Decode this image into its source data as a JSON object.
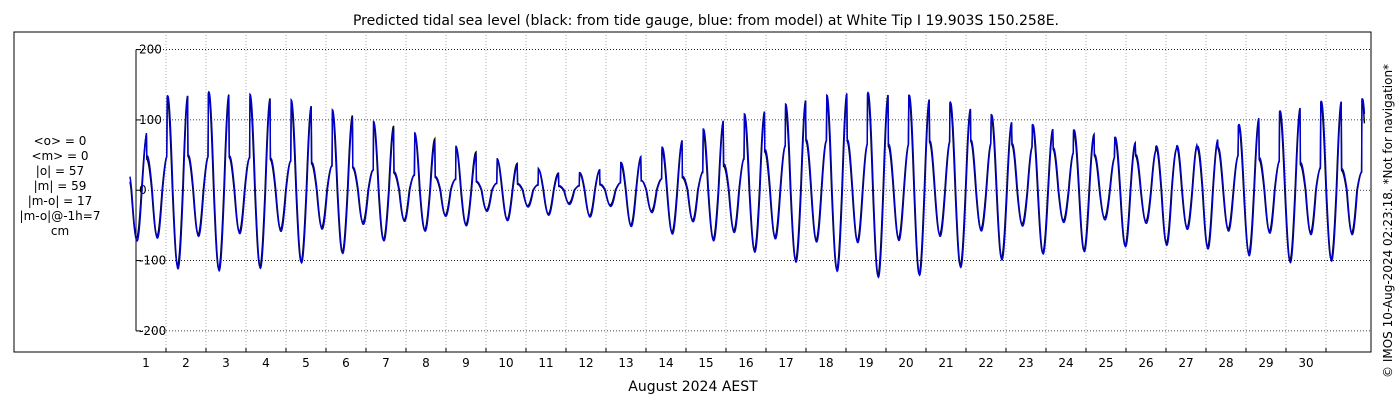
{
  "chart_data": {
    "type": "line",
    "title": "Predicted tidal sea level (black: from tide gauge, blue: from model) at White Tip I 19.903S 150.258E.",
    "xlabel": "August 2024 AEST",
    "ylabel": "",
    "xlim": [
      0.0,
      31.0
    ],
    "ylim": [
      -230,
      225
    ],
    "x_ticks": [
      1,
      2,
      3,
      4,
      5,
      6,
      7,
      8,
      9,
      10,
      11,
      12,
      13,
      14,
      15,
      16,
      17,
      18,
      19,
      20,
      21,
      22,
      23,
      24,
      25,
      26,
      27,
      28,
      29,
      30
    ],
    "x_tick_labels": [
      "1",
      "2",
      "3",
      "4",
      "5",
      "6",
      "7",
      "8",
      "9",
      "10",
      "11",
      "12",
      "13",
      "14",
      "15",
      "16",
      "17",
      "18",
      "19",
      "20",
      "21",
      "22",
      "23",
      "24",
      "25",
      "26",
      "27",
      "28",
      "29",
      "30"
    ],
    "y_ticks": [
      -200,
      -100,
      0,
      100,
      200
    ],
    "y_tick_labels": [
      "-200",
      "-100",
      "0",
      "100",
      "200"
    ],
    "grid": {
      "x": "dotted",
      "y": "dotted"
    },
    "series": [
      {
        "color": "#000000",
        "days": [
          0,
          1,
          2,
          3,
          4,
          5,
          6,
          7,
          8,
          9,
          10,
          11,
          12,
          13,
          14,
          15,
          16,
          17,
          18,
          19,
          20,
          21,
          22,
          23,
          24,
          25,
          26,
          27,
          28,
          29,
          30,
          31
        ],
        "high_main": [
          25,
          130,
          138,
          135,
          128,
          115,
          102,
          87,
          68,
          50,
          35,
          22,
          30,
          50,
          72,
          100,
          112,
          128,
          138,
          136,
          130,
          118,
          98,
          88,
          82,
          70,
          58,
          60,
          98,
          112,
          125,
          128
        ],
        "high_secondary": [
          40,
          48,
          48,
          46,
          42,
          35,
          30,
          22,
          17,
          10,
          8,
          5,
          8,
          15,
          18,
          35,
          55,
          70,
          70,
          62,
          68,
          70,
          65,
          60,
          50,
          45,
          60,
          65,
          45,
          40,
          30,
          25
        ],
        "low_main": [
          -55,
          -105,
          -112,
          -110,
          -105,
          -95,
          -78,
          -60,
          -52,
          -45,
          -38,
          -30,
          -40,
          -55,
          -62,
          -72,
          -90,
          -102,
          -115,
          -122,
          -118,
          -105,
          -95,
          -88,
          -85,
          -78,
          -75,
          -80,
          -88,
          -100,
          -98,
          -95
        ],
        "low_secondary": [
          -65,
          -65,
          -62,
          -58,
          -55,
          -52,
          -45,
          -42,
          -35,
          -28,
          -22,
          -18,
          -20,
          -28,
          -40,
          -55,
          -65,
          -70,
          -72,
          -70,
          -65,
          -58,
          -50,
          -45,
          -40,
          -38,
          -50,
          -55,
          -55,
          -60,
          -60,
          -60
        ]
      },
      {
        "color": "#0000cc",
        "days": [
          0,
          1,
          2,
          3,
          4,
          5,
          6,
          7,
          8,
          9,
          10,
          11,
          12,
          13,
          14,
          15,
          16,
          17,
          18,
          19,
          20,
          21,
          22,
          23,
          24,
          25,
          26,
          27,
          28,
          29,
          30,
          31
        ],
        "high_main": [
          30,
          134,
          140,
          137,
          130,
          117,
          100,
          85,
          66,
          48,
          34,
          21,
          32,
          52,
          75,
          103,
          115,
          130,
          140,
          138,
          133,
          120,
          100,
          90,
          84,
          72,
          60,
          63,
          100,
          115,
          128,
          130
        ],
        "high_secondary": [
          48,
          50,
          50,
          48,
          44,
          37,
          31,
          24,
          18,
          11,
          9,
          6,
          9,
          14,
          20,
          38,
          58,
          72,
          72,
          65,
          70,
          72,
          67,
          62,
          52,
          47,
          62,
          67,
          48,
          43,
          33,
          27
        ],
        "low_main": [
          -58,
          -110,
          -115,
          -113,
          -107,
          -97,
          -80,
          -62,
          -54,
          -47,
          -40,
          -32,
          -42,
          -57,
          -65,
          -75,
          -93,
          -105,
          -118,
          -125,
          -120,
          -108,
          -98,
          -90,
          -87,
          -80,
          -78,
          -83,
          -92,
          -103,
          -101,
          -98
        ],
        "low_secondary": [
          -68,
          -68,
          -65,
          -61,
          -58,
          -55,
          -48,
          -44,
          -37,
          -30,
          -24,
          -20,
          -22,
          -30,
          -42,
          -58,
          -68,
          -73,
          -75,
          -73,
          -68,
          -61,
          -53,
          -48,
          -43,
          -41,
          -53,
          -58,
          -58,
          -63,
          -63,
          -63
        ]
      }
    ]
  },
  "stats": {
    "lines": [
      "<o> = 0",
      "<m> = 0",
      "|o| = 57",
      "|m| = 59",
      "|m-o| = 17",
      "|m-o|@-1h=7",
      "cm"
    ]
  },
  "credit": "© IMOS 10-Aug-2024 02:23:18. *Not for navigation*"
}
